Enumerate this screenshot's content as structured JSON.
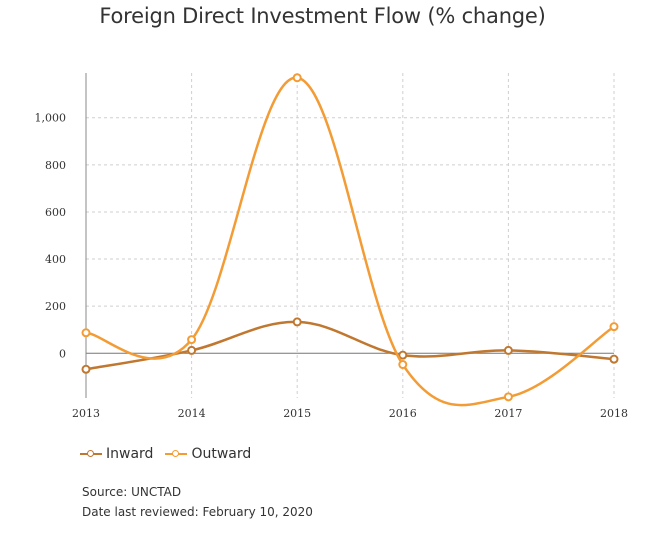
{
  "title": "Foreign Direct Investment Flow (% change)",
  "chart_data": {
    "type": "line",
    "title": "Foreign Direct Investment Flow (% change)",
    "x": [
      "2013",
      "2014",
      "2015",
      "2016",
      "2017",
      "2018"
    ],
    "series": [
      {
        "name": "Inward",
        "color": "#c0772f",
        "values": [
          -68,
          12,
          133,
          -8,
          12,
          -25
        ]
      },
      {
        "name": "Outward",
        "color": "#f39c35",
        "values": [
          87,
          58,
          1170,
          -48,
          -185,
          113
        ]
      }
    ],
    "ylim": [
      -190,
      1190
    ],
    "yticks": [
      0,
      200,
      400,
      600,
      800,
      1000
    ],
    "ytick_labels": [
      "0",
      "200",
      "400",
      "600",
      "800",
      "1,000"
    ],
    "grid": true,
    "legend": "bottom-left",
    "xlabel": "",
    "ylabel": ""
  },
  "legend": {
    "inward": "Inward",
    "outward": "Outward"
  },
  "footer": {
    "source": "Source: UNCTAD",
    "reviewed": "Date last reviewed: February 10, 2020"
  }
}
